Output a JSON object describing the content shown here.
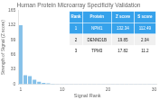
{
  "chart_data": {
    "type": "bar",
    "title": "Human Protein Microarray Specificity Validation",
    "xlabel": "Signal Rank",
    "ylabel": "Strength of Signal (Z score)",
    "x": [
      1,
      2,
      3,
      4,
      5,
      6,
      7,
      8,
      9,
      10,
      11,
      12,
      13,
      14,
      15,
      16,
      17,
      18,
      19,
      20,
      21,
      22,
      23,
      24,
      25,
      26,
      27,
      28,
      29,
      30
    ],
    "values": [
      132.34,
      19.85,
      17.82,
      9.8,
      5.4,
      3.0,
      1.65,
      0.9,
      0.5,
      0.5,
      0.5,
      0.5,
      0.5,
      0.5,
      0.5,
      0.5,
      0.5,
      0.5,
      0.5,
      0.5,
      0.5,
      0.5,
      0.5,
      0.5,
      0.5,
      0.5,
      0.5,
      0.5,
      0.5,
      0.5
    ],
    "color": "#85c1e9",
    "xlim": [
      0.5,
      30.5
    ],
    "xticks": [
      1,
      10,
      20,
      30
    ],
    "ylim": [
      0,
      165
    ],
    "yticks": [
      0,
      33,
      66,
      99,
      132,
      165
    ],
    "grid": false,
    "table": [
      [
        "Rank",
        "Protein",
        "Z score",
        "S score"
      ],
      [
        "1",
        "NPM1",
        "132.34",
        "112.49"
      ],
      [
        "2",
        "DENND1B",
        "19.85",
        "2.04"
      ],
      [
        "3",
        "TPM3",
        "17.82",
        "11.2"
      ]
    ]
  }
}
